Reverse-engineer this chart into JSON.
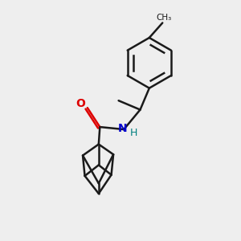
{
  "bg_color": "#eeeeee",
  "bond_color": "#1a1a1a",
  "bond_width": 1.8,
  "o_color": "#dd0000",
  "n_color": "#0000cc",
  "h_color": "#008080",
  "figsize": [
    3.0,
    3.0
  ],
  "dpi": 100,
  "xlim": [
    0,
    10
  ],
  "ylim": [
    0,
    10
  ]
}
